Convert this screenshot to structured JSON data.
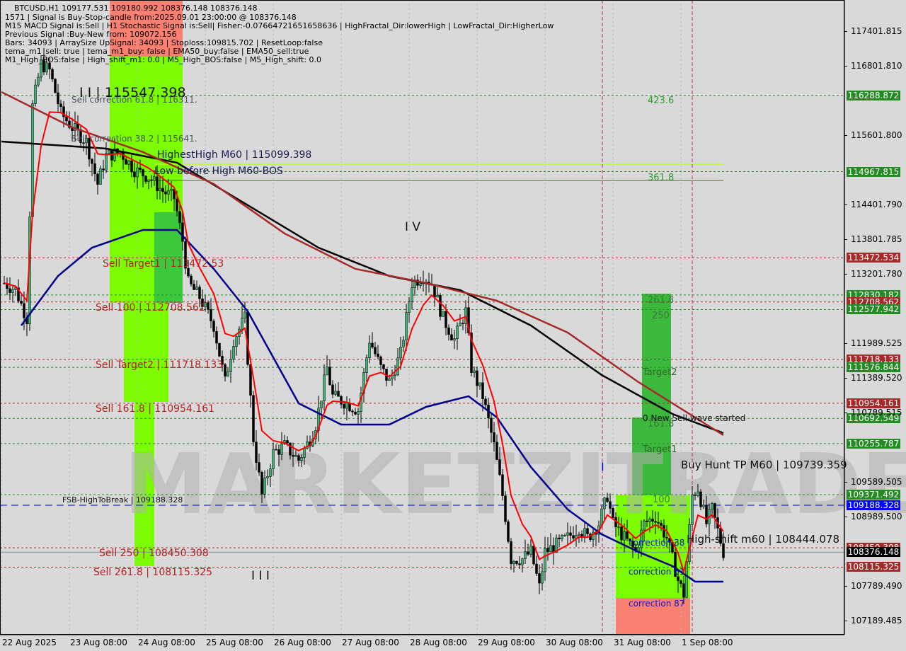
{
  "header": {
    "symbol_line": "BTCUSD,H1  109177.531 109180.992 108376.148 108376.148",
    "lines": [
      "1571 | Signal is Buy-Stop-candle from:2025.09.01 23:00:00 @ 108376.148",
      "M15 MACD Signal is:Sell | H1 Stochastic Signal is:Sell| Fisher:-0.07664721651658636 | HighFractal_Dir:lowerHigh | LowFractal_Dir:HigherLow",
      "Previous Signal :Buy-New from: 109072.156",
      "Bars: 34093 | ArraySize UpSignal: 34093 | Stoploss:109815.702 | ResetLoop:false",
      "tema_m1_sell: true | tema_m1_buy: false | EMA50_buy:false | EMA50_sell:true",
      "M1_High_BOS:false | High_shift_m1: 0.0 | M5_High_BOS:false | M5_High_shift: 0.0"
    ]
  },
  "watermark": "MARKETZITRADE",
  "colors": {
    "bg": "#d9d9d9",
    "bull": "#3cb371",
    "bear": "#000000",
    "level_green": "#228b22",
    "level_red": "#a52a2a",
    "level_blue": "#0000ff",
    "current": "#000000",
    "ma_black": "#000000",
    "ma_brown": "#a52a2a",
    "ma_blue": "#00008b",
    "ma_red": "#ff0000",
    "zone_green": "#7cfc00",
    "zone_mid": "#3cb83c",
    "zone_salmon": "#fa8072"
  },
  "chart_data": {
    "type": "candlestick",
    "symbol": "BTCUSD",
    "timeframe": "H1",
    "ylim": [
      107000,
      117900
    ],
    "y_ticks": [
      "117401.815",
      "116801.810",
      "115601.800",
      "114401.790",
      "113801.785",
      "113201.780",
      "111989.525",
      "111389.520",
      "110789.515",
      "109589.505",
      "108989.500",
      "107789.490",
      "107189.485"
    ],
    "x_ticks": [
      {
        "t": "2025-08-22 08:00",
        "label": "22 Aug 2025"
      },
      {
        "t": "2025-08-23 08:00",
        "label": "23 Aug 08:00"
      },
      {
        "t": "2025-08-24 08:00",
        "label": "24 Aug 08:00"
      },
      {
        "t": "2025-08-25 08:00",
        "label": "25 Aug 08:00"
      },
      {
        "t": "2025-08-26 08:00",
        "label": "26 Aug 08:00"
      },
      {
        "t": "2025-08-27 08:00",
        "label": "27 Aug 08:00"
      },
      {
        "t": "2025-08-28 08:00",
        "label": "28 Aug 08:00"
      },
      {
        "t": "2025-08-29 08:00",
        "label": "29 Aug 08:00"
      },
      {
        "t": "2025-08-30 08:00",
        "label": "30 Aug 08:00"
      },
      {
        "t": "2025-08-31 08:00",
        "label": "31 Aug 08:00"
      },
      {
        "t": "2025-09-01 08:00",
        "label": "1 Sep 08:00"
      }
    ],
    "close_path": [
      [
        "2025-08-22 09:00",
        113037
      ],
      [
        "2025-08-22 13:00",
        112915
      ],
      [
        "2025-08-22 17:00",
        112424
      ],
      [
        "2025-08-22 19:00",
        116102
      ],
      [
        "2025-08-22 22:00",
        116838
      ],
      [
        "2025-08-23 01:00",
        116715
      ],
      [
        "2025-08-23 05:00",
        115980
      ],
      [
        "2025-08-23 09:00",
        115735
      ],
      [
        "2025-08-23 14:00",
        115489
      ],
      [
        "2025-08-23 18:00",
        114754
      ],
      [
        "2025-08-23 21:00",
        115244
      ],
      [
        "2025-08-24 02:00",
        115306
      ],
      [
        "2025-08-24 07:00",
        114999
      ],
      [
        "2025-08-24 12:00",
        114876
      ],
      [
        "2025-08-24 17:00",
        114631
      ],
      [
        "2025-08-24 21:00",
        114509
      ],
      [
        "2025-08-25 00:00",
        113773
      ],
      [
        "2025-08-25 02:00",
        113037
      ],
      [
        "2025-08-25 06:00",
        112792
      ],
      [
        "2025-08-25 11:00",
        112302
      ],
      [
        "2025-08-25 15:00",
        111321
      ],
      [
        "2025-08-25 18:00",
        112057
      ],
      [
        "2025-08-25 22:00",
        112424
      ],
      [
        "2025-08-26 01:00",
        110340
      ],
      [
        "2025-08-26 04:00",
        109359
      ],
      [
        "2025-08-26 08:00",
        110095
      ],
      [
        "2025-08-26 12:00",
        110218
      ],
      [
        "2025-08-26 17:00",
        109972
      ],
      [
        "2025-08-26 21:00",
        110340
      ],
      [
        "2025-08-26 23:00",
        110585
      ],
      [
        "2025-08-27 03:00",
        111566
      ],
      [
        "2025-08-27 05:00",
        111076
      ],
      [
        "2025-08-27 10:00",
        110953
      ],
      [
        "2025-08-27 14:00",
        110831
      ],
      [
        "2025-08-27 18:00",
        112057
      ],
      [
        "2025-08-27 22:00",
        111566
      ],
      [
        "2025-08-28 01:00",
        111321
      ],
      [
        "2025-08-28 05:00",
        111811
      ],
      [
        "2025-08-28 09:00",
        113037
      ],
      [
        "2025-08-28 13:00",
        113160
      ],
      [
        "2025-08-28 16:00",
        113037
      ],
      [
        "2025-08-28 20:00",
        112424
      ],
      [
        "2025-08-29 00:00",
        112057
      ],
      [
        "2025-08-29 04:00",
        112547
      ],
      [
        "2025-08-29 06:00",
        111566
      ],
      [
        "2025-08-29 10:00",
        111076
      ],
      [
        "2025-08-29 14:00",
        110218
      ],
      [
        "2025-08-29 17:00",
        109359
      ],
      [
        "2025-08-29 20:00",
        108256
      ],
      [
        "2025-08-30 00:00",
        108256
      ],
      [
        "2025-08-30 03:00",
        108379
      ],
      [
        "2025-08-30 06:00",
        107766
      ],
      [
        "2025-08-30 08:00",
        108379
      ],
      [
        "2025-08-30 12:00",
        108501
      ],
      [
        "2025-08-30 16:00",
        108624
      ],
      [
        "2025-08-30 20:00",
        108808
      ],
      [
        "2025-08-30 23:00",
        108624
      ],
      [
        "2025-08-31 03:00",
        108869
      ],
      [
        "2025-08-31 06:00",
        109359
      ],
      [
        "2025-08-31 08:00",
        108869
      ],
      [
        "2025-08-31 12:00",
        108624
      ],
      [
        "2025-08-31 16:00",
        108379
      ],
      [
        "2025-08-31 19:00",
        108869
      ],
      [
        "2025-08-31 23:00",
        108992
      ],
      [
        "2025-09-01 03:00",
        108624
      ],
      [
        "2025-09-01 07:00",
        107888
      ],
      [
        "2025-09-01 09:00",
        107643
      ],
      [
        "2025-09-01 12:00",
        109359
      ],
      [
        "2025-09-01 14:00",
        109482
      ],
      [
        "2025-09-01 17:00",
        108869
      ],
      [
        "2025-09-01 19:00",
        109114
      ],
      [
        "2025-09-01 23:00",
        108376
      ]
    ],
    "ma_lines": [
      {
        "color": "#000000",
        "points": [
          [
            "2025-08-22 08:00",
            115489
          ],
          [
            "2025-08-23 21:00",
            115367
          ],
          [
            "2025-08-24 22:00",
            115122
          ],
          [
            "2025-08-25 23:00",
            114386
          ],
          [
            "2025-08-27 00:00",
            113650
          ],
          [
            "2025-08-28 01:00",
            113160
          ],
          [
            "2025-08-29 02:00",
            112915
          ],
          [
            "2025-08-30 03:00",
            112302
          ],
          [
            "2025-08-31 04:00",
            111444
          ],
          [
            "2025-09-01 05:00",
            110769
          ],
          [
            "2025-09-01 23:00",
            110438
          ]
        ]
      },
      {
        "color": "#a52a2a",
        "points": [
          [
            "2025-08-22 08:00",
            116348
          ],
          [
            "2025-08-23 09:00",
            115735
          ],
          [
            "2025-08-24 10:00",
            115306
          ],
          [
            "2025-08-25 11:00",
            114754
          ],
          [
            "2025-08-26 12:00",
            113896
          ],
          [
            "2025-08-27 13:00",
            113283
          ],
          [
            "2025-08-28 14:00",
            113037
          ],
          [
            "2025-08-29 15:00",
            112731
          ],
          [
            "2025-08-30 16:00",
            112179
          ],
          [
            "2025-08-31 17:00",
            111321
          ],
          [
            "2025-09-01 23:00",
            110402
          ]
        ]
      },
      {
        "color": "#00008b",
        "points": [
          [
            "2025-08-22 15:00",
            112302
          ],
          [
            "2025-08-23 04:00",
            113160
          ],
          [
            "2025-08-23 16:00",
            113650
          ],
          [
            "2025-08-24 10:00",
            113957
          ],
          [
            "2025-08-24 22:00",
            113957
          ],
          [
            "2025-08-25 11:00",
            113283
          ],
          [
            "2025-08-25 23:00",
            112547
          ],
          [
            "2025-08-26 17:00",
            110953
          ],
          [
            "2025-08-27 08:00",
            110585
          ],
          [
            "2025-08-28 01:00",
            110585
          ],
          [
            "2025-08-28 14:00",
            110892
          ],
          [
            "2025-08-29 05:00",
            111076
          ],
          [
            "2025-08-29 15:00",
            110709
          ],
          [
            "2025-08-30 03:00",
            109850
          ],
          [
            "2025-08-30 16:00",
            109114
          ],
          [
            "2025-08-31 04:00",
            108685
          ],
          [
            "2025-08-31 17:00",
            108379
          ],
          [
            "2025-09-01 05:00",
            108133
          ],
          [
            "2025-09-01 13:00",
            107864
          ],
          [
            "2025-09-01 23:00",
            107864
          ]
        ]
      }
    ],
    "levels": [
      {
        "price": "116288.872",
        "kind": "green"
      },
      {
        "price": "114967.815",
        "kind": "green"
      },
      {
        "price": "113472.534",
        "kind": "red"
      },
      {
        "price": "112830.182",
        "kind": "green"
      },
      {
        "price": "112708.562",
        "kind": "red"
      },
      {
        "price": "112577.942",
        "kind": "green"
      },
      {
        "price": "111718.133",
        "kind": "red"
      },
      {
        "price": "111576.844",
        "kind": "green"
      },
      {
        "price": "110954.161",
        "kind": "red"
      },
      {
        "price": "110692.549",
        "kind": "green"
      },
      {
        "price": "110255.787",
        "kind": "green"
      },
      {
        "price": "109371.492",
        "kind": "green"
      },
      {
        "price": "109188.328",
        "kind": "blue"
      },
      {
        "price": "108450.308",
        "kind": "red"
      },
      {
        "price": "108376.148",
        "kind": "current"
      },
      {
        "price": "108115.325",
        "kind": "red"
      }
    ],
    "annotations": {
      "wave2": "I I | 115547.398",
      "sell_corr_618": "Sell correction 61.8 | 116311.",
      "sell_corr_382": "Sell correction 38.2 | 115641.",
      "highest_high": "HighestHigh    M60 | 115099.398",
      "low_before_high": "Low before High    M60-BOS",
      "sell_target1": "Sell Target1 | 113472.53",
      "sell_100": "Sell 100 | 112708.562",
      "sell_target2": "Sell Target2 | 111718.133",
      "sell_1618": "Sell 161.8 | 110954.161",
      "fsb": "FSB-HighToBreak | 109188.328",
      "sell_250": "Sell  250 | 108450.308",
      "sell_2618": "Sell  261.8 | 108115.325",
      "wave3": "I I I",
      "wave4": "I V",
      "wave1": "I",
      "fib_4236": "423.6",
      "fib_3618": "361.8",
      "fib_2618": "261.8",
      "fib_250": "250",
      "target2": "Target2",
      "fib_1618": "161.8",
      "target1": "Target1",
      "fib_100": "100",
      "new_sell_wave": "0 New Sell wave started",
      "buy_hunt": "Buy Hunt TP M60 | 109739.359",
      "high_shift": "High-shift m60 | 108444.078",
      "corr_38": "correction 38",
      "corr_61": "correction 61",
      "corr_87": "correction 87"
    }
  }
}
